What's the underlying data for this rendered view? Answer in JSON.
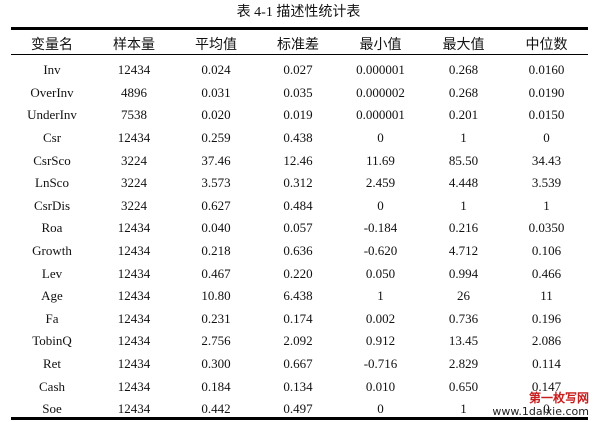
{
  "caption": "表 4-1  描述性统计表",
  "columns": [
    "变量名",
    "样本量",
    "平均值",
    "标准差",
    "最小值",
    "最大值",
    "中位数"
  ],
  "rows": [
    [
      "Inv",
      "12434",
      "0.024",
      "0.027",
      "0.000001",
      "0.268",
      "0.0160"
    ],
    [
      "OverInv",
      "4896",
      "0.031",
      "0.035",
      "0.000002",
      "0.268",
      "0.0190"
    ],
    [
      "UnderInv",
      "7538",
      "0.020",
      "0.019",
      "0.000001",
      "0.201",
      "0.0150"
    ],
    [
      "Csr",
      "12434",
      "0.259",
      "0.438",
      "0",
      "1",
      "0"
    ],
    [
      "CsrSco",
      "3224",
      "37.46",
      "12.46",
      "11.69",
      "85.50",
      "34.43"
    ],
    [
      "LnSco",
      "3224",
      "3.573",
      "0.312",
      "2.459",
      "4.448",
      "3.539"
    ],
    [
      "CsrDis",
      "3224",
      "0.627",
      "0.484",
      "0",
      "1",
      "1"
    ],
    [
      "Roa",
      "12434",
      "0.040",
      "0.057",
      "-0.184",
      "0.216",
      "0.0350"
    ],
    [
      "Growth",
      "12434",
      "0.218",
      "0.636",
      "-0.620",
      "4.712",
      "0.106"
    ],
    [
      "Lev",
      "12434",
      "0.467",
      "0.220",
      "0.050",
      "0.994",
      "0.466"
    ],
    [
      "Age",
      "12434",
      "10.80",
      "6.438",
      "1",
      "26",
      "11"
    ],
    [
      "Fa",
      "12434",
      "0.231",
      "0.174",
      "0.002",
      "0.736",
      "0.196"
    ],
    [
      "TobinQ",
      "12434",
      "2.756",
      "2.092",
      "0.912",
      "13.45",
      "2.086"
    ],
    [
      "Ret",
      "12434",
      "0.300",
      "0.667",
      "-0.716",
      "2.829",
      "0.114"
    ],
    [
      "Cash",
      "12434",
      "0.184",
      "0.134",
      "0.010",
      "0.650",
      "0.147"
    ],
    [
      "Soe",
      "12434",
      "0.442",
      "0.497",
      "0",
      "1",
      "0"
    ]
  ],
  "watermark": {
    "title": "第一枚写网",
    "url": "www.1daixie.com"
  }
}
